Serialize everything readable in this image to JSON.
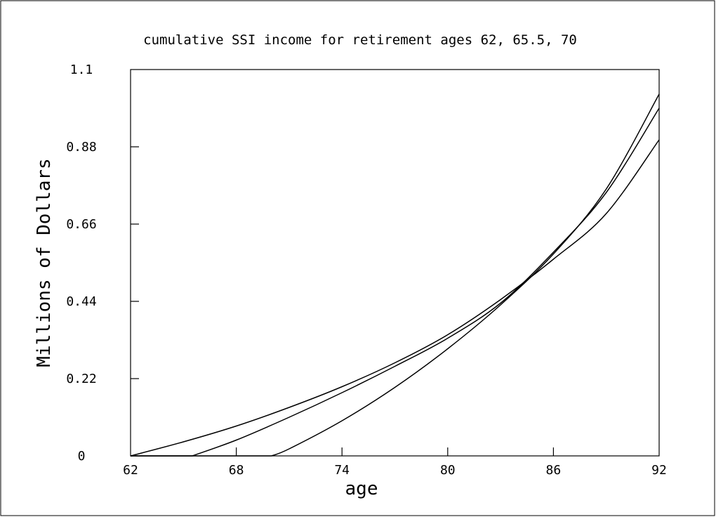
{
  "chart_data": {
    "type": "line",
    "title": "cumulative SSI income for retirement ages 62, 65.5, 70",
    "xlabel": "age",
    "ylabel": "Millions of Dollars",
    "xlim": [
      62,
      92
    ],
    "ylim": [
      0,
      1.1
    ],
    "x_ticks": [
      "62",
      "68",
      "74",
      "80",
      "86",
      "92"
    ],
    "y_ticks": [
      "0",
      "0.22",
      "0.44",
      "0.66",
      "0.88",
      "1.1"
    ],
    "grid": false,
    "legend": "none",
    "series": [
      {
        "x": [
          62,
          65,
          68,
          71,
          74,
          77,
          80,
          83,
          86,
          89,
          92
        ],
        "values": [
          0,
          0.04,
          0.085,
          0.138,
          0.197,
          0.265,
          0.345,
          0.445,
          0.56,
          0.69,
          0.9
        ]
      },
      {
        "x": [
          65.5,
          68,
          71,
          74,
          77,
          80,
          83,
          86,
          89,
          92
        ],
        "values": [
          0,
          0.045,
          0.11,
          0.18,
          0.255,
          0.335,
          0.435,
          0.58,
          0.75,
          0.99
        ]
      },
      {
        "x": [
          70,
          71,
          74,
          77,
          80,
          83,
          86,
          89,
          92
        ],
        "values": [
          0,
          0.02,
          0.1,
          0.195,
          0.305,
          0.43,
          0.575,
          0.76,
          1.03
        ]
      }
    ]
  }
}
